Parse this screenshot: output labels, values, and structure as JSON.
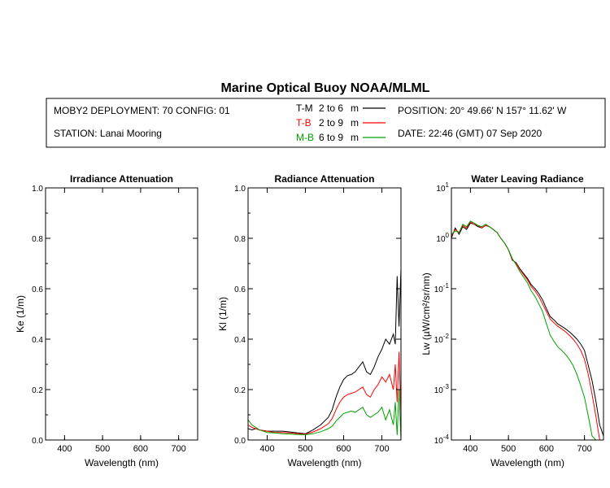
{
  "header": {
    "title": "Marine Optical Buoy NOAA/MLML",
    "deployment": "MOBY2 DEPLOYMENT: 70 CONFIG: 01",
    "station": "STATION: Lanai Mooring",
    "position": "POSITION: 20° 49.66' N   157° 11.62' W",
    "date": "DATE: 22:46 (GMT) 07 Sep 2020",
    "legend": [
      {
        "code": "T-M",
        "range": "2 to 6",
        "unit": "m",
        "color": "#000000"
      },
      {
        "code": "T-B",
        "range": "2 to 9",
        "unit": "m",
        "color": "#ff0000"
      },
      {
        "code": "M-B",
        "range": "6 to 9",
        "unit": "m",
        "color": "#00a000"
      }
    ]
  },
  "chart_data": [
    {
      "type": "line",
      "title": "Irradiance Attenuation",
      "xlabel": "Wavelength (nm)",
      "ylabel": "Ke  (1/m)",
      "xlim": [
        350,
        750
      ],
      "ylim": [
        0,
        1
      ],
      "xticks": [
        400,
        500,
        600,
        700
      ],
      "yticks": [
        0.0,
        0.2,
        0.4,
        0.6,
        0.8,
        1.0
      ],
      "series": []
    },
    {
      "type": "line",
      "title": "Radiance Attenuation",
      "xlabel": "Wavelength (nm)",
      "ylabel": "Kl  (1/m)",
      "xlim": [
        350,
        750
      ],
      "ylim": [
        0,
        1
      ],
      "xticks": [
        400,
        500,
        600,
        700
      ],
      "yticks": [
        0.0,
        0.2,
        0.4,
        0.6,
        0.8,
        1.0
      ],
      "series": [
        {
          "name": "T-M",
          "color": "#000000",
          "x": [
            350,
            360,
            370,
            380,
            400,
            420,
            440,
            460,
            480,
            500,
            520,
            540,
            560,
            570,
            580,
            590,
            600,
            610,
            620,
            630,
            640,
            650,
            660,
            670,
            680,
            690,
            700,
            710,
            720,
            730,
            735,
            740,
            745,
            750
          ],
          "y": [
            0.045,
            0.04,
            0.045,
            0.04,
            0.035,
            0.035,
            0.035,
            0.032,
            0.028,
            0.025,
            0.04,
            0.06,
            0.09,
            0.12,
            0.17,
            0.21,
            0.24,
            0.255,
            0.26,
            0.27,
            0.29,
            0.31,
            0.27,
            0.26,
            0.29,
            0.33,
            0.36,
            0.4,
            0.38,
            0.42,
            0.38,
            0.65,
            0.45,
            0.68
          ]
        },
        {
          "name": "T-B",
          "color": "#ff0000",
          "x": [
            350,
            360,
            370,
            380,
            400,
            420,
            440,
            460,
            480,
            500,
            520,
            540,
            560,
            570,
            580,
            590,
            600,
            610,
            620,
            630,
            640,
            650,
            660,
            670,
            680,
            690,
            700,
            710,
            720,
            730,
            735,
            740,
            745,
            750
          ],
          "y": [
            0.06,
            0.05,
            0.045,
            0.04,
            0.035,
            0.03,
            0.03,
            0.028,
            0.025,
            0.023,
            0.032,
            0.045,
            0.065,
            0.085,
            0.12,
            0.15,
            0.17,
            0.18,
            0.185,
            0.19,
            0.2,
            0.21,
            0.18,
            0.17,
            0.2,
            0.22,
            0.25,
            0.23,
            0.26,
            0.2,
            0.3,
            0.15,
            0.35,
            0.1
          ]
        },
        {
          "name": "M-B",
          "color": "#00a000",
          "x": [
            350,
            360,
            370,
            380,
            400,
            420,
            440,
            460,
            480,
            500,
            520,
            540,
            560,
            570,
            580,
            590,
            600,
            610,
            620,
            630,
            640,
            650,
            660,
            670,
            680,
            690,
            700,
            710,
            720,
            730,
            735,
            740,
            745,
            750
          ],
          "y": [
            0.08,
            0.06,
            0.05,
            0.04,
            0.03,
            0.028,
            0.025,
            0.024,
            0.022,
            0.021,
            0.025,
            0.033,
            0.045,
            0.055,
            0.075,
            0.09,
            0.105,
            0.11,
            0.115,
            0.11,
            0.12,
            0.13,
            0.1,
            0.09,
            0.1,
            0.11,
            0.13,
            0.08,
            0.12,
            0.06,
            0.15,
            0.02,
            0.2,
            0.0
          ]
        }
      ]
    },
    {
      "type": "line",
      "title": "Water Leaving Radiance",
      "xlabel": "Wavelength (nm)",
      "ylabel": "Lw  (µW/cm²/sr/nm)",
      "xlim": [
        350,
        750
      ],
      "ylim": [
        0.0001,
        10
      ],
      "yscale": "log",
      "xticks": [
        400,
        500,
        600,
        700
      ],
      "ytick_exponents": [
        1,
        0,
        -1,
        -2,
        -3,
        -4
      ],
      "series": [
        {
          "name": "T-M",
          "color": "#000000",
          "x": [
            350,
            360,
            370,
            380,
            390,
            400,
            410,
            420,
            430,
            440,
            450,
            460,
            470,
            480,
            490,
            500,
            510,
            520,
            530,
            540,
            550,
            560,
            570,
            580,
            590,
            600,
            610,
            620,
            630,
            640,
            650,
            660,
            670,
            680,
            690,
            700,
            710,
            720,
            730,
            740,
            750
          ],
          "y": [
            1.0,
            1.6,
            1.2,
            1.7,
            1.5,
            2.0,
            1.9,
            1.7,
            1.6,
            1.8,
            1.7,
            1.5,
            1.3,
            1.0,
            0.8,
            0.6,
            0.37,
            0.33,
            0.25,
            0.2,
            0.16,
            0.12,
            0.1,
            0.08,
            0.06,
            0.04,
            0.028,
            0.024,
            0.02,
            0.018,
            0.016,
            0.014,
            0.012,
            0.01,
            0.008,
            0.006,
            0.003,
            0.0015,
            0.0006,
            0.0002,
            0.00012
          ]
        },
        {
          "name": "T-B",
          "color": "#ff0000",
          "x": [
            350,
            360,
            370,
            380,
            390,
            400,
            410,
            420,
            430,
            440,
            450,
            460,
            470,
            480,
            490,
            500,
            510,
            520,
            530,
            540,
            550,
            560,
            570,
            580,
            590,
            600,
            610,
            620,
            630,
            640,
            650,
            660,
            670,
            680,
            690,
            700,
            710,
            720,
            730,
            740,
            750
          ],
          "y": [
            1.1,
            1.5,
            1.3,
            1.8,
            1.6,
            2.1,
            1.9,
            1.8,
            1.6,
            1.8,
            1.7,
            1.5,
            1.3,
            1.0,
            0.8,
            0.6,
            0.38,
            0.32,
            0.24,
            0.19,
            0.15,
            0.11,
            0.09,
            0.07,
            0.05,
            0.035,
            0.025,
            0.021,
            0.018,
            0.016,
            0.014,
            0.012,
            0.01,
            0.008,
            0.006,
            0.004,
            0.002,
            0.0008,
            0.0003,
            0.0001,
            0.0001
          ]
        },
        {
          "name": "M-B",
          "color": "#00a000",
          "x": [
            350,
            360,
            370,
            380,
            390,
            400,
            410,
            420,
            430,
            440,
            450,
            460,
            470,
            480,
            490,
            500,
            510,
            520,
            530,
            540,
            550,
            560,
            570,
            580,
            590,
            600,
            610,
            620,
            630,
            640,
            650,
            660,
            670,
            680,
            690,
            700,
            710,
            720,
            730,
            740,
            750
          ],
          "y": [
            1.2,
            1.4,
            1.3,
            1.9,
            1.7,
            2.2,
            2.0,
            1.8,
            1.7,
            1.9,
            1.7,
            1.5,
            1.3,
            1.0,
            0.8,
            0.6,
            0.4,
            0.3,
            0.22,
            0.17,
            0.13,
            0.09,
            0.07,
            0.05,
            0.035,
            0.02,
            0.012,
            0.009,
            0.007,
            0.006,
            0.005,
            0.004,
            0.003,
            0.002,
            0.0012,
            0.0007,
            0.0003,
            0.00012,
            0.0001,
            0.0001,
            0.0001
          ]
        }
      ]
    }
  ]
}
